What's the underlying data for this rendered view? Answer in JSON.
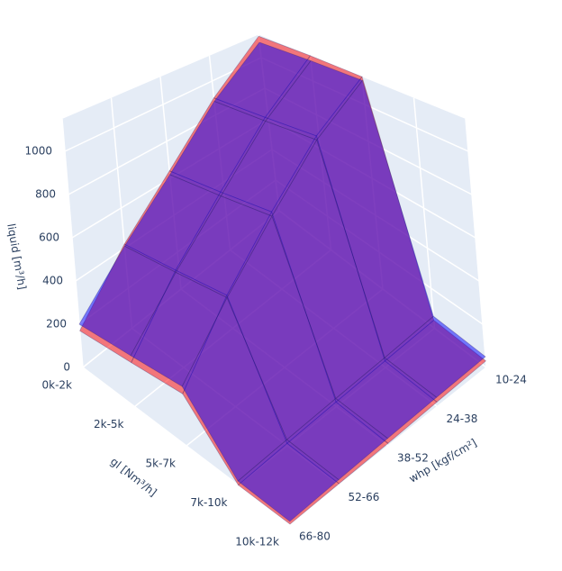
{
  "chart_data": {
    "type": "surface3d",
    "x_label": "gl [Nm³/h]",
    "y_label": "whp [kgf/cm²]",
    "z_label": "liquid [m³/h]",
    "x": [
      "0k-2k",
      "2k-5k",
      "5k-7k",
      "7k-10k",
      "10k-12k"
    ],
    "y": [
      "10-24",
      "24-38",
      "38-52",
      "52-66",
      "66-80"
    ],
    "zlim": [
      0,
      1150
    ],
    "zticks": [
      0,
      200,
      400,
      600,
      800,
      1000
    ],
    "series": [
      {
        "color": "#ff0000",
        "values": [
          [
            1140,
            900,
            640,
            420,
            170
          ],
          [
            1150,
            930,
            680,
            450,
            190
          ],
          [
            1150,
            960,
            720,
            480,
            210
          ],
          [
            40,
            30,
            20,
            10,
            0
          ],
          [
            30,
            20,
            10,
            5,
            0
          ]
        ]
      },
      {
        "color": "#0000ff",
        "values": [
          [
            1100,
            880,
            620,
            410,
            200
          ],
          [
            1120,
            910,
            660,
            440,
            220
          ],
          [
            1130,
            940,
            700,
            470,
            240
          ],
          [
            60,
            45,
            35,
            25,
            15
          ],
          [
            50,
            40,
            30,
            20,
            10
          ]
        ]
      }
    ]
  }
}
